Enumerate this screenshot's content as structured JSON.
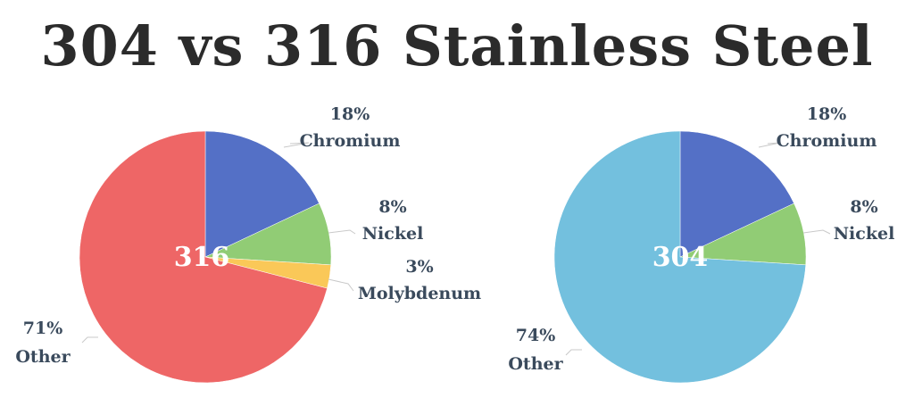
{
  "title": "304 vs 316 Stainless Steel",
  "chart_data": [
    {
      "type": "pie",
      "center_label": "316",
      "slices": [
        {
          "name": "Chromium",
          "value": 18,
          "label": "18%",
          "color": "#5470c6"
        },
        {
          "name": "Nickel",
          "value": 8,
          "label": "8%",
          "color": "#91cc75"
        },
        {
          "name": "Molybdenum",
          "value": 3,
          "label": "3%",
          "color": "#fac858"
        },
        {
          "name": "Other",
          "value": 71,
          "label": "71%",
          "color": "#ee6666"
        }
      ]
    },
    {
      "type": "pie",
      "center_label": "304",
      "slices": [
        {
          "name": "Chromium",
          "value": 18,
          "label": "18%",
          "color": "#5470c6"
        },
        {
          "name": "Nickel",
          "value": 8,
          "label": "8%",
          "color": "#91cc75"
        },
        {
          "name": "Other",
          "value": 74,
          "label": "74%",
          "color": "#73c0de"
        }
      ]
    }
  ]
}
